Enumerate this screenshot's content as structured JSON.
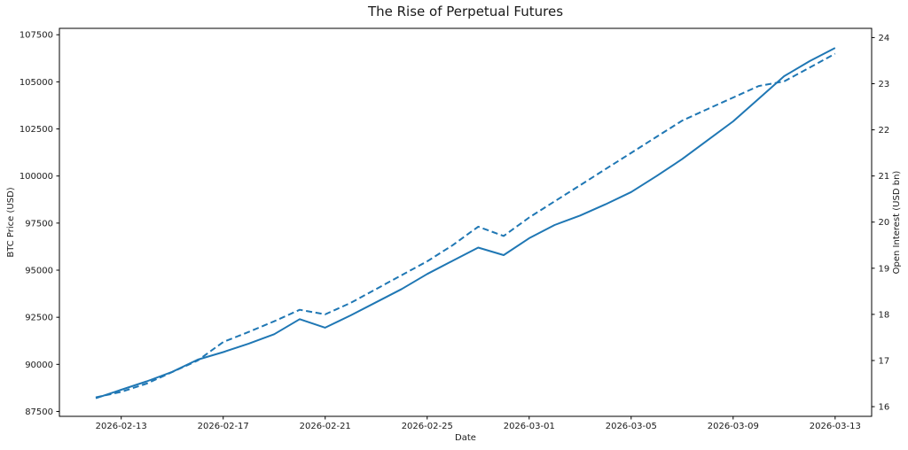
{
  "chart_data": {
    "type": "line",
    "title": "The Rise of Perpetual Futures",
    "xlabel": "Date",
    "ylabel_left": "BTC Price (USD)",
    "ylabel_right": "Open Interest (USD bn)",
    "line_color": "#1f77b4",
    "grid": false,
    "legend": "none",
    "x": [
      "2026-02-12",
      "2026-02-13",
      "2026-02-14",
      "2026-02-15",
      "2026-02-16",
      "2026-02-17",
      "2026-02-18",
      "2026-02-19",
      "2026-02-20",
      "2026-02-21",
      "2026-02-22",
      "2026-02-23",
      "2026-02-24",
      "2026-02-25",
      "2026-02-26",
      "2026-02-27",
      "2026-02-28",
      "2026-03-01",
      "2026-03-02",
      "2026-03-03",
      "2026-03-04",
      "2026-03-05",
      "2026-03-06",
      "2026-03-07",
      "2026-03-08",
      "2026-03-09",
      "2026-03-10",
      "2026-03-11",
      "2026-03-12",
      "2026-03-13"
    ],
    "series": [
      {
        "name": "BTC Price (USD)",
        "axis": "left",
        "line_style": "solid",
        "values": [
          88200,
          88650,
          89100,
          89600,
          90250,
          90650,
          91100,
          91600,
          92400,
          91950,
          92600,
          93300,
          94000,
          94800,
          95500,
          96200,
          95800,
          96700,
          97400,
          97900,
          98500,
          99150,
          100000,
          100900,
          101900,
          102900,
          104100,
          105300,
          106100,
          106800
        ]
      },
      {
        "name": "Open Interest (USD bn)",
        "axis": "right",
        "line_style": "dashed",
        "values": [
          16.2,
          16.32,
          16.5,
          16.75,
          17.0,
          17.4,
          17.62,
          17.85,
          18.1,
          18.0,
          18.25,
          18.55,
          18.85,
          19.15,
          19.5,
          19.9,
          19.7,
          20.1,
          20.45,
          20.8,
          21.15,
          21.5,
          21.85,
          22.2,
          22.45,
          22.7,
          22.95,
          23.05,
          23.35,
          23.65
        ]
      }
    ],
    "x_tick_labels": [
      "2026-02-13",
      "2026-02-17",
      "2026-02-21",
      "2026-02-25",
      "2026-03-01",
      "2026-03-05",
      "2026-03-09",
      "2026-03-13"
    ],
    "y_left_ticks": [
      87500,
      90000,
      92500,
      95000,
      97500,
      100000,
      102500,
      105000,
      107500
    ],
    "y_right_ticks": [
      16,
      17,
      18,
      19,
      20,
      21,
      22,
      23,
      24
    ],
    "y_left_range": [
      87240,
      107840
    ],
    "y_right_range": [
      15.79,
      24.2
    ]
  }
}
